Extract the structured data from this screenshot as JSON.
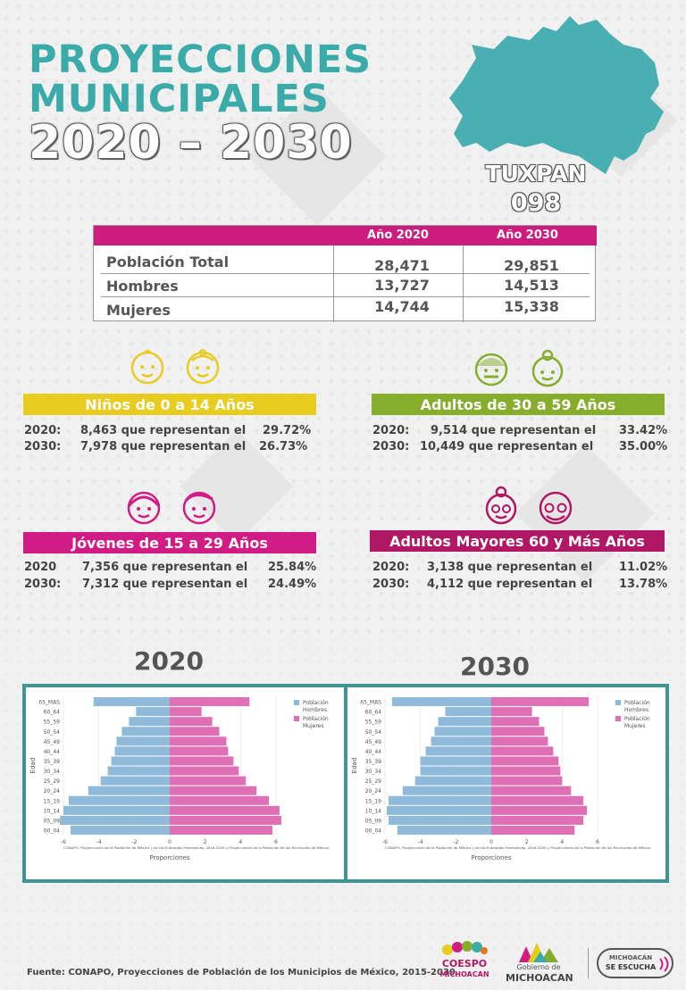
{
  "title": {
    "line1": "PROYECCIONES",
    "line2": "MUNICIPALES",
    "line3": "2020 – 2030"
  },
  "municipality": {
    "name": "TUXPAN",
    "code": "098",
    "map_color": "#4aafb3"
  },
  "population_table": {
    "headers": [
      "Año 2020",
      "Año 2030"
    ],
    "rows": [
      {
        "label": "Población Total",
        "v2020": "28,471",
        "v2030": "29,851"
      },
      {
        "label": "Hombres",
        "v2020": "13,727",
        "v2030": "14,513"
      },
      {
        "label": "Mujeres",
        "v2020": "14,744",
        "v2030": "15,338"
      }
    ]
  },
  "groups": {
    "ninos": {
      "label": "Niños de 0 a 14 Años",
      "color": "#e8cc1f",
      "rows": [
        {
          "year": "2020:",
          "text": "8,463 que representan el",
          "pct": "29.72%"
        },
        {
          "year": "2030:",
          "text": "7,978 que representan el",
          "pct": "26.73%"
        }
      ]
    },
    "adultos": {
      "label": "Adultos de 30 a 59 Años",
      "color": "#86ad2c",
      "rows": [
        {
          "year": "2020:",
          "text": "9,514 que representan el",
          "pct": "33.42%"
        },
        {
          "year": "2030:",
          "text": "10,449 que representan el",
          "pct": "35.00%"
        }
      ]
    },
    "jovenes": {
      "label": "Jóvenes de 15 a 29 Años",
      "color": "#d11c85",
      "rows": [
        {
          "year": "2020",
          "text": "7,356 que representan el",
          "pct": "25.84%"
        },
        {
          "year": "2030:",
          "text": "7,312 que representan el",
          "pct": "24.49%"
        }
      ]
    },
    "mayores": {
      "label": "Adultos Mayores  60 y Más Años",
      "color": "#b01866",
      "rows": [
        {
          "year": "2020:",
          "text": "3,138 que representan el",
          "pct": "11.02%"
        },
        {
          "year": "2030:",
          "text": "4,112 que representan el",
          "pct": "13.78%"
        }
      ]
    }
  },
  "chart_titles": {
    "c2020": "2020",
    "c2030": "2030"
  },
  "chart_data": [
    {
      "type": "bar",
      "orientation": "horizontal",
      "title": "2020",
      "categories": [
        "65_MAS",
        "60_64",
        "55_59",
        "50_54",
        "45_49",
        "40_44",
        "35_39",
        "30_34",
        "25_29",
        "20_24",
        "15_19",
        "10_14",
        "05_09",
        "00_04"
      ],
      "series": [
        {
          "name": "Población Hombres",
          "color": "#8fbad9",
          "values": [
            -4.3,
            -1.9,
            -2.3,
            -2.7,
            -3.0,
            -3.1,
            -3.3,
            -3.5,
            -3.9,
            -4.6,
            -5.7,
            -6.0,
            -6.2,
            -5.6
          ]
        },
        {
          "name": "Población Mujeres",
          "color": "#e070b5",
          "values": [
            4.5,
            1.8,
            2.4,
            2.8,
            3.2,
            3.3,
            3.6,
            3.9,
            4.3,
            4.9,
            5.6,
            6.2,
            6.3,
            5.8
          ]
        }
      ],
      "xlim": [
        -6,
        6
      ],
      "xticks": [
        "-6",
        "-4",
        "-2",
        "0",
        "2",
        "4",
        "6"
      ],
      "xlabel": "Proporciones",
      "ylabel": "Edad",
      "source": "CONAPO, Proyecciones de la Población de México y de las Entidades Federativas, 2016-2050 y Proyecciones de la Población de los Municipios de México.",
      "legend": "top-right"
    },
    {
      "type": "bar",
      "orientation": "horizontal",
      "title": "2030",
      "categories": [
        "65_MAS",
        "60_64",
        "55_59",
        "50_54",
        "45_49",
        "40_44",
        "35_39",
        "30_34",
        "25_29",
        "20_24",
        "15_19",
        "10_14",
        "05_09",
        "00_04"
      ],
      "series": [
        {
          "name": "Población Hombres",
          "color": "#8fbad9",
          "values": [
            -5.6,
            -2.6,
            -3.0,
            -3.2,
            -3.4,
            -3.7,
            -4.0,
            -4.0,
            -4.3,
            -5.0,
            -5.8,
            -5.9,
            -5.8,
            -5.3
          ]
        },
        {
          "name": "Población Mujeres",
          "color": "#e070b5",
          "values": [
            5.5,
            2.3,
            2.7,
            3.0,
            3.2,
            3.5,
            3.8,
            3.9,
            4.0,
            4.5,
            5.2,
            5.4,
            5.2,
            4.7
          ]
        }
      ],
      "xlim": [
        -6,
        6
      ],
      "xticks": [
        "-6",
        "-4",
        "-2",
        "0",
        "2",
        "4",
        "6"
      ],
      "xlabel": "Proporciones",
      "ylabel": "Edad",
      "source": "CONAPO, Proyecciones de la Población de México y de las Entidades Federativas, 2016-2050 y Proyecciones de la Población de los Municipios de México.",
      "legend": "top-right"
    }
  ],
  "footer": {
    "source": "Fuente: CONAPO, Proyecciones de Población de los Municipios de México, 2015-2030"
  },
  "logos": {
    "coespo_line1": "COESPO",
    "coespo_line2": "MICHOACAN",
    "gobierno_line1": "Gobierno de",
    "gobierno_line2": "MICHOACAN",
    "escucha_line1": "MICHOACÁN",
    "escucha_line2": "SE ESCUCHA"
  }
}
